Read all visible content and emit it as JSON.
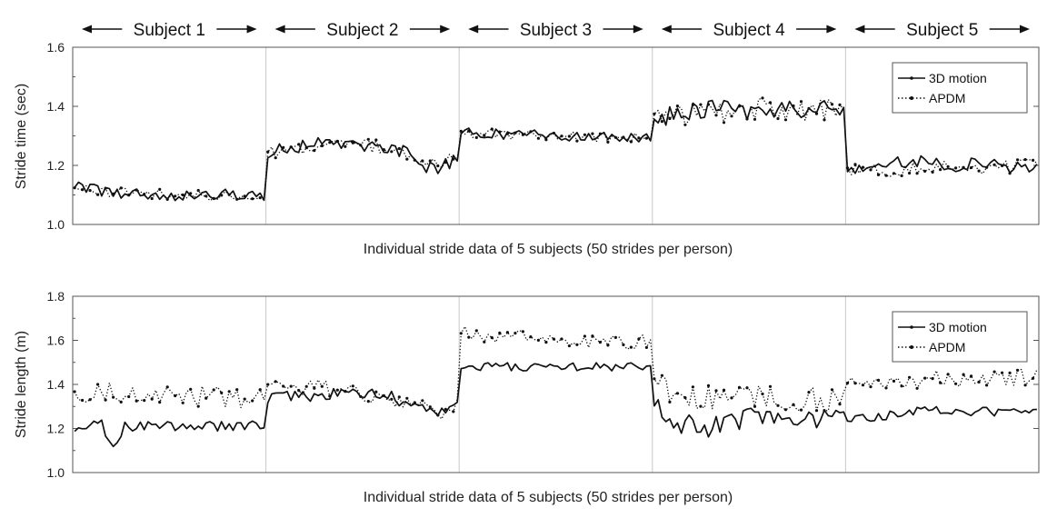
{
  "subjects": [
    "Subject 1",
    "Subject 2",
    "Subject 3",
    "Subject 4",
    "Subject 5"
  ],
  "strides_per_subject": 50,
  "colors": {
    "series": "#111111",
    "divider": "#c8c8c8",
    "axis": "#555555"
  },
  "chart_data": [
    {
      "type": "line",
      "xlabel": "Individual stride data of 5 subjects (50 strides per person)",
      "ylabel": "Stride time (sec)",
      "ylim": [
        1.0,
        1.6
      ],
      "yticks": [
        "1.0",
        "1.2",
        "1.4",
        "1.6"
      ],
      "legend": {
        "placement": "top-right",
        "entries": [
          "3D motion",
          "APDM"
        ]
      },
      "series": [
        {
          "name": "3D motion",
          "style": "solid",
          "segments": [
            {
              "subject": "Subject 1",
              "mean": 1.1,
              "noise": 0.012,
              "keypoints": [
                [
                  0,
                  1.13
                ],
                [
                  8,
                  1.11
                ],
                [
                  25,
                  1.1
                ],
                [
                  49,
                  1.1
                ]
              ]
            },
            {
              "subject": "Subject 2",
              "mean": 1.26,
              "noise": 0.014,
              "keypoints": [
                [
                  0,
                  1.23
                ],
                [
                  3,
                  1.26
                ],
                [
                  20,
                  1.28
                ],
                [
                  35,
                  1.25
                ],
                [
                  40,
                  1.2
                ],
                [
                  45,
                  1.19
                ],
                [
                  49,
                  1.23
                ]
              ]
            },
            {
              "subject": "Subject 3",
              "mean": 1.3,
              "noise": 0.011,
              "keypoints": [
                [
                  0,
                  1.31
                ],
                [
                  25,
                  1.3
                ],
                [
                  49,
                  1.29
                ]
              ]
            },
            {
              "subject": "Subject 4",
              "mean": 1.38,
              "noise": 0.022,
              "keypoints": [
                [
                  0,
                  1.36
                ],
                [
                  10,
                  1.39
                ],
                [
                  25,
                  1.38
                ],
                [
                  49,
                  1.4
                ]
              ]
            },
            {
              "subject": "Subject 5",
              "mean": 1.2,
              "noise": 0.016,
              "keypoints": [
                [
                  0,
                  1.18
                ],
                [
                  10,
                  1.22
                ],
                [
                  30,
                  1.2
                ],
                [
                  49,
                  1.2
                ]
              ]
            }
          ]
        },
        {
          "name": "APDM",
          "style": "dotted",
          "segments": [
            {
              "subject": "Subject 1",
              "mean": 1.1,
              "noise": 0.012,
              "keypoints": [
                [
                  0,
                  1.12
                ],
                [
                  25,
                  1.1
                ],
                [
                  49,
                  1.1
                ]
              ]
            },
            {
              "subject": "Subject 2",
              "mean": 1.26,
              "noise": 0.014,
              "keypoints": [
                [
                  0,
                  1.24
                ],
                [
                  20,
                  1.28
                ],
                [
                  35,
                  1.25
                ],
                [
                  42,
                  1.2
                ],
                [
                  49,
                  1.23
                ]
              ]
            },
            {
              "subject": "Subject 3",
              "mean": 1.3,
              "noise": 0.011,
              "keypoints": [
                [
                  0,
                  1.31
                ],
                [
                  49,
                  1.29
                ]
              ]
            },
            {
              "subject": "Subject 4",
              "mean": 1.38,
              "noise": 0.024,
              "keypoints": [
                [
                  0,
                  1.36
                ],
                [
                  25,
                  1.39
                ],
                [
                  49,
                  1.39
                ]
              ]
            },
            {
              "subject": "Subject 5",
              "mean": 1.2,
              "noise": 0.016,
              "keypoints": [
                [
                  0,
                  1.18
                ],
                [
                  49,
                  1.2
                ]
              ]
            }
          ]
        }
      ]
    },
    {
      "type": "line",
      "xlabel": "Individual stride data of 5 subjects (50 strides per person)",
      "ylabel": "Stride length (m)",
      "ylim": [
        1.0,
        1.8
      ],
      "yticks": [
        "1.0",
        "1.2",
        "1.4",
        "1.6",
        "1.8"
      ],
      "legend": {
        "placement": "top-right",
        "entries": [
          "3D motion",
          "APDM"
        ]
      },
      "series": [
        {
          "name": "3D motion",
          "style": "solid",
          "segments": [
            {
              "subject": "Subject 1",
              "mean": 1.21,
              "noise": 0.015,
              "keypoints": [
                [
                  0,
                  1.2
                ],
                [
                  7,
                  1.22
                ],
                [
                  9,
                  1.13
                ],
                [
                  11,
                  1.14
                ],
                [
                  13,
                  1.21
                ],
                [
                  49,
                  1.21
                ]
              ]
            },
            {
              "subject": "Subject 2",
              "mean": 1.35,
              "noise": 0.018,
              "keypoints": [
                [
                  0,
                  1.33
                ],
                [
                  10,
                  1.35
                ],
                [
                  30,
                  1.36
                ],
                [
                  38,
                  1.3
                ],
                [
                  45,
                  1.28
                ],
                [
                  49,
                  1.32
                ]
              ]
            },
            {
              "subject": "Subject 3",
              "mean": 1.48,
              "noise": 0.012,
              "keypoints": [
                [
                  0,
                  1.48
                ],
                [
                  25,
                  1.48
                ],
                [
                  49,
                  1.48
                ]
              ]
            },
            {
              "subject": "Subject 4",
              "mean": 1.25,
              "noise": 0.03,
              "keypoints": [
                [
                  0,
                  1.32
                ],
                [
                  4,
                  1.24
                ],
                [
                  12,
                  1.2
                ],
                [
                  25,
                  1.25
                ],
                [
                  49,
                  1.25
                ]
              ]
            },
            {
              "subject": "Subject 5",
              "mean": 1.27,
              "noise": 0.013,
              "keypoints": [
                [
                  0,
                  1.24
                ],
                [
                  20,
                  1.28
                ],
                [
                  49,
                  1.27
                ]
              ]
            }
          ]
        },
        {
          "name": "APDM",
          "style": "dotted",
          "segments": [
            {
              "subject": "Subject 1",
              "mean": 1.35,
              "noise": 0.03,
              "keypoints": [
                [
                  0,
                  1.37
                ],
                [
                  25,
                  1.35
                ],
                [
                  49,
                  1.34
                ]
              ]
            },
            {
              "subject": "Subject 2",
              "mean": 1.37,
              "noise": 0.025,
              "keypoints": [
                [
                  0,
                  1.4
                ],
                [
                  20,
                  1.38
                ],
                [
                  38,
                  1.32
                ],
                [
                  45,
                  1.27
                ],
                [
                  49,
                  1.33
                ]
              ]
            },
            {
              "subject": "Subject 3",
              "mean": 1.6,
              "noise": 0.022,
              "keypoints": [
                [
                  0,
                  1.63
                ],
                [
                  25,
                  1.6
                ],
                [
                  49,
                  1.59
                ]
              ]
            },
            {
              "subject": "Subject 4",
              "mean": 1.34,
              "noise": 0.035,
              "keypoints": [
                [
                  0,
                  1.42
                ],
                [
                  6,
                  1.34
                ],
                [
                  25,
                  1.34
                ],
                [
                  49,
                  1.33
                ]
              ]
            },
            {
              "subject": "Subject 5",
              "mean": 1.42,
              "noise": 0.025,
              "keypoints": [
                [
                  0,
                  1.4
                ],
                [
                  25,
                  1.43
                ],
                [
                  49,
                  1.43
                ]
              ]
            }
          ]
        }
      ]
    }
  ]
}
